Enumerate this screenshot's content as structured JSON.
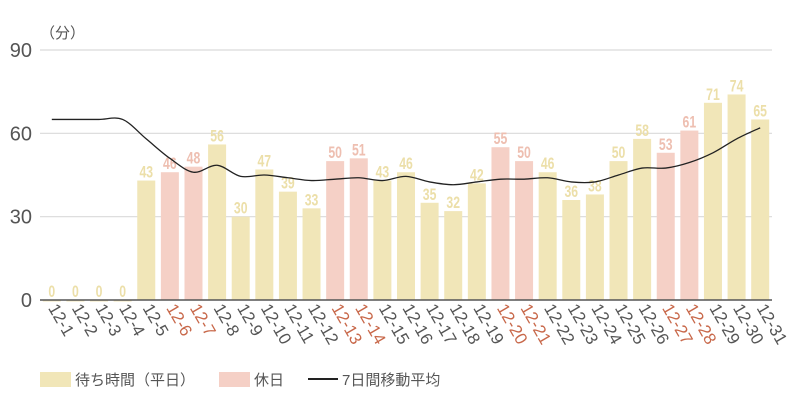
{
  "chart_data": {
    "type": "bar",
    "title": "",
    "unit_label": "（分）",
    "xlabel": "",
    "ylabel": "（分）",
    "ylim": [
      0,
      90
    ],
    "yticks": [
      0,
      30,
      60,
      90
    ],
    "grid": true,
    "legend_position": "bottom",
    "categories": [
      "12-1",
      "12-2",
      "12-3",
      "12-4",
      "12-5",
      "12-6",
      "12-7",
      "12-8",
      "12-9",
      "12-10",
      "12-11",
      "12-12",
      "12-13",
      "12-14",
      "12-15",
      "12-16",
      "12-17",
      "12-18",
      "12-19",
      "12-20",
      "12-21",
      "12-22",
      "12-23",
      "12-24",
      "12-25",
      "12-26",
      "12-27",
      "12-28",
      "12-29",
      "12-30",
      "12-31"
    ],
    "holidays": [
      "12-6",
      "12-7",
      "12-13",
      "12-14",
      "12-20",
      "12-21",
      "12-27",
      "12-28"
    ],
    "series": [
      {
        "name": "待ち時間（平日）/ 休日",
        "type": "bar",
        "values": [
          0,
          0,
          0,
          0,
          43,
          46,
          48,
          56,
          30,
          47,
          39,
          33,
          50,
          51,
          43,
          46,
          35,
          32,
          42,
          55,
          50,
          46,
          36,
          38,
          50,
          58,
          53,
          61,
          71,
          74,
          65
        ]
      },
      {
        "name": "7日間移動平均",
        "type": "line",
        "values": [
          65,
          65,
          65,
          65,
          58,
          51,
          46,
          48.5,
          44.5,
          45,
          44,
          43,
          43.5,
          44,
          43,
          44.5,
          42.5,
          41.5,
          42.5,
          43.5,
          43.5,
          44,
          42.5,
          42.5,
          45,
          47.5,
          47.5,
          49.5,
          53,
          58,
          62
        ]
      }
    ],
    "legend": [
      {
        "label": "待ち時間（平日）",
        "color": "#f1e6b8",
        "kind": "box"
      },
      {
        "label": "休日",
        "color": "#f5d0c6",
        "kind": "box"
      },
      {
        "label": "7日間移動平均",
        "color": "#222222",
        "kind": "line"
      }
    ]
  },
  "colors": {
    "weekday_bar": "#f1e6b8",
    "weekday_label": "#ecdfa9",
    "holiday_bar": "#f5d0c6",
    "holiday_label": "#eebfb1",
    "holiday_tick": "#c8684a",
    "normal_tick": "#555555",
    "grid": "#d9d9d9",
    "axis": "#555555",
    "line": "#222222"
  },
  "legend": {
    "weekday": "待ち時間（平日）",
    "holiday": "休日",
    "average": "7日間移動平均"
  }
}
